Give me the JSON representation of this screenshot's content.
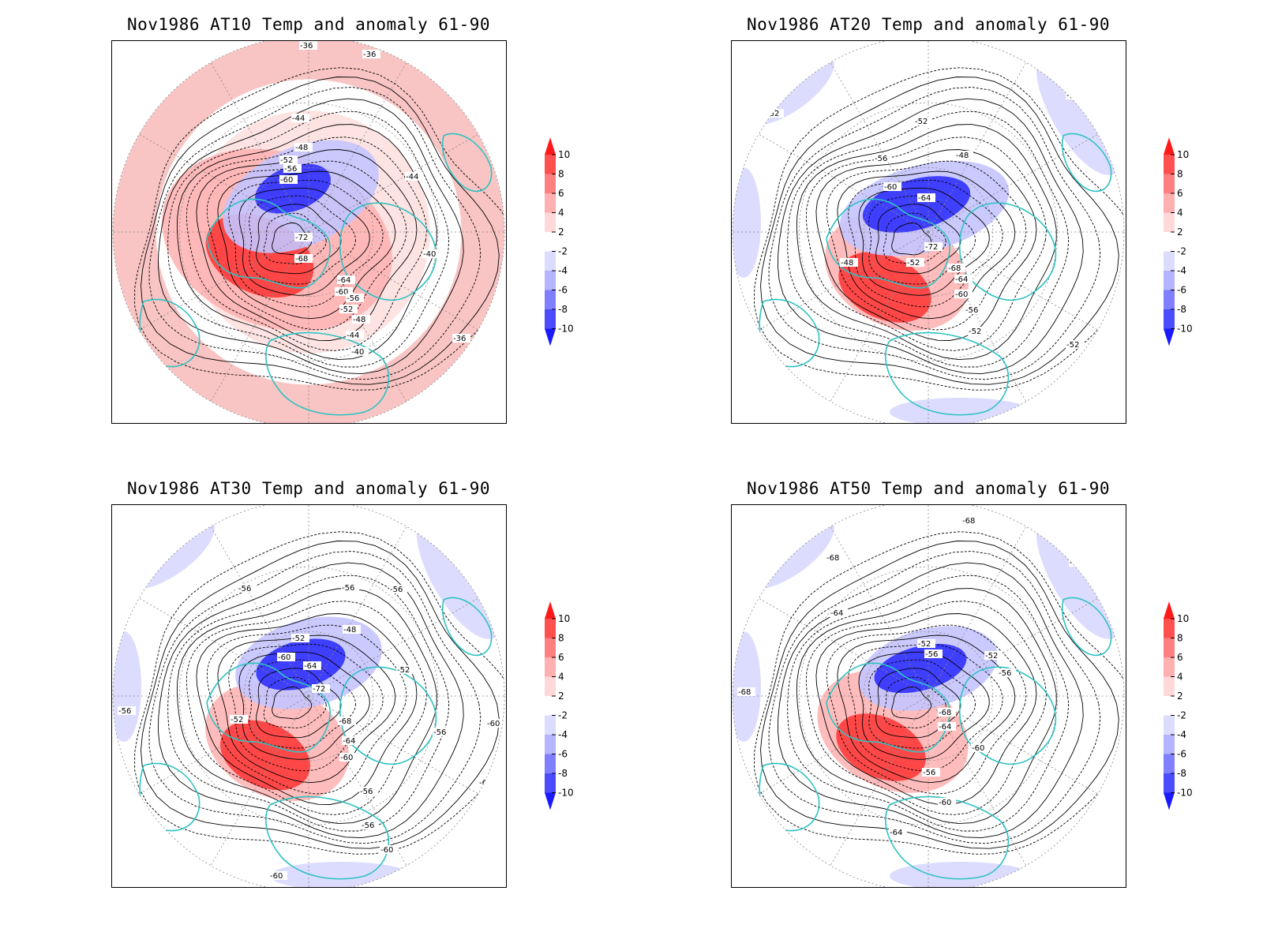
{
  "panels": [
    {
      "id": "at10",
      "title": "Nov1986 AT10 Temp and anomaly 61-90",
      "outer_fill": "#f8c5c4",
      "contour_labels": [
        "-36",
        "-36",
        "-44",
        "-44",
        "-48",
        "-52",
        "-56",
        "-60",
        "-72",
        "-68",
        "-64",
        "-60",
        "-56",
        "-52",
        "-48",
        "-44",
        "-40",
        "-40",
        "-36"
      ],
      "anomaly_patches": [
        {
          "kind": "warm",
          "level": 8
        },
        {
          "kind": "warm",
          "level": 4
        },
        {
          "kind": "cold",
          "level": -8
        },
        {
          "kind": "cold",
          "level": -4
        }
      ]
    },
    {
      "id": "at20",
      "title": "Nov1986 AT20 Temp and anomaly 61-90",
      "outer_fill": "#ffffff",
      "contour_labels": [
        "-52",
        "-52",
        "-52",
        "-48",
        "-56",
        "-60",
        "-64",
        "-72",
        "-48",
        "-68",
        "-64",
        "-60",
        "-56",
        "-52",
        "-52",
        "-52"
      ],
      "anomaly_patches": [
        {
          "kind": "warm",
          "level": 8
        },
        {
          "kind": "cold",
          "level": -8
        },
        {
          "kind": "cold",
          "level": -2
        }
      ]
    },
    {
      "id": "at30",
      "title": "Nov1986 AT30 Temp and anomaly 61-90",
      "outer_fill": "#ffffff",
      "contour_labels": [
        "-56",
        "-56",
        "-56",
        "-48",
        "-52",
        "-60",
        "-64",
        "-52",
        "-72",
        "-56",
        "-52",
        "-68",
        "-64",
        "-60",
        "-56",
        "-56",
        "-56",
        "-60",
        "-60",
        "-60",
        "-60"
      ],
      "anomaly_patches": [
        {
          "kind": "warm",
          "level": 8
        },
        {
          "kind": "warm",
          "level": 4
        },
        {
          "kind": "cold",
          "level": -8
        },
        {
          "kind": "cold",
          "level": -2
        }
      ]
    },
    {
      "id": "at50",
      "title": "Nov1986 AT50 Temp and anomaly 61-90",
      "outer_fill": "#ffffff",
      "contour_labels": [
        "-68",
        "-68",
        "-68",
        "-64",
        "-52",
        "-56",
        "-52",
        "-56",
        "-68",
        "-68",
        "-64",
        "-60",
        "-56",
        "-60",
        "-64"
      ],
      "anomaly_patches": [
        {
          "kind": "warm",
          "level": 6
        },
        {
          "kind": "warm",
          "level": 4
        },
        {
          "kind": "cold",
          "level": -8
        },
        {
          "kind": "cold",
          "level": -2
        }
      ]
    }
  ],
  "colorbar": {
    "labels": [
      "10",
      "8",
      "6",
      "4",
      "2",
      "-2",
      "-4",
      "-6",
      "-8",
      "-10"
    ],
    "colors": [
      "#ff1a1a",
      "#ff5050",
      "#ff8080",
      "#ffb0b0",
      "#ffd8d8",
      "#ffffff",
      "#dcdcff",
      "#b4b4ff",
      "#8080ff",
      "#4c4cff",
      "#1a1aff"
    ]
  },
  "colors": {
    "coastline": "#2fc2c2",
    "contour": "#000000",
    "grid": "#888888"
  }
}
